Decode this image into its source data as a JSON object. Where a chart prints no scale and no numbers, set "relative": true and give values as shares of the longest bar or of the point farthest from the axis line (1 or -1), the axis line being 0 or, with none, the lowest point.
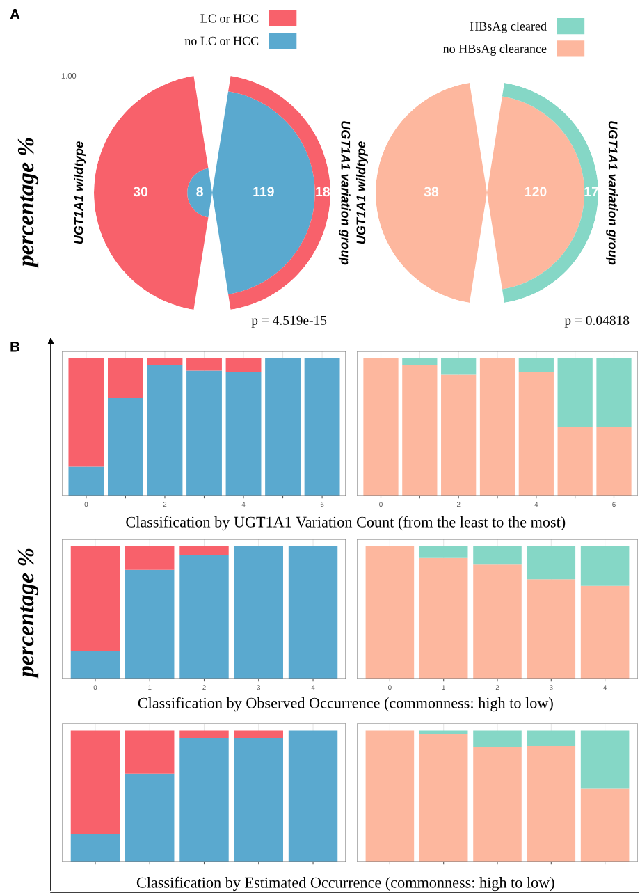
{
  "chart_data": [
    {
      "type": "other",
      "data_labels": true,
      "categories": [
        "UGT1A1 wildtype",
        "UGT1A1 variation group"
      ],
      "legend": "top",
      "annotations": [
        "A",
        "percentage %",
        "p = 4.519e-15",
        "1.00"
      ],
      "series": [
        {
          "name": "no LC or HCC",
          "color": "#5aa9cf",
          "values": [
            8,
            119
          ]
        },
        {
          "name": "LC or HCC",
          "color": "#f8616b",
          "values": [
            30,
            18
          ]
        }
      ]
    },
    {
      "type": "other",
      "data_labels": true,
      "categories": [
        "UGT1A1 wildtype",
        "UGT1A1 variation group"
      ],
      "legend": "top",
      "annotations": [
        "p = 0.04818"
      ],
      "series": [
        {
          "name": "no HBsAg clearance",
          "color": "#fdb79e",
          "values": [
            38,
            120
          ]
        },
        {
          "name": "HBsAg cleared",
          "color": "#85d7c6",
          "values": [
            null,
            17
          ]
        }
      ]
    },
    {
      "type": "bar",
      "stacked": true,
      "relative": true,
      "grid": "x",
      "tick_labels": "x",
      "categories": [
        "0",
        null,
        "2",
        null,
        "4",
        null,
        "6"
      ],
      "xlabel": "Classification by UGT1A1 Variation Count (from the least to the most)",
      "annotations": [
        "B",
        "percentage %"
      ],
      "series": [
        {
          "color": "#5aa9cf",
          "values": [
            0.21,
            0.71,
            0.95,
            0.91,
            0.9,
            1.0,
            1.0
          ]
        },
        {
          "color": "#f8616b",
          "values": [
            0.79,
            0.29,
            0.05,
            0.09,
            0.1,
            0,
            0
          ]
        }
      ]
    },
    {
      "type": "bar",
      "stacked": true,
      "relative": true,
      "grid": "x",
      "tick_labels": "x",
      "categories": [
        "0",
        null,
        "2",
        null,
        "4",
        null,
        "6"
      ],
      "series": [
        {
          "color": "#fdb79e",
          "values": [
            1.0,
            0.95,
            0.88,
            1.0,
            0.9,
            0.5,
            0.5
          ]
        },
        {
          "color": "#85d7c6",
          "values": [
            0,
            0.05,
            0.12,
            0,
            0.1,
            0.5,
            0.5
          ]
        }
      ]
    },
    {
      "type": "bar",
      "stacked": true,
      "relative": true,
      "grid": "x",
      "tick_labels": "x",
      "categories": [
        "0",
        "1",
        "2",
        "3",
        "4"
      ],
      "xlabel": "Classification by Observed Occurrence (commonness: high to low)",
      "series": [
        {
          "color": "#5aa9cf",
          "values": [
            0.21,
            0.82,
            0.93,
            1.0,
            1.0
          ]
        },
        {
          "color": "#f8616b",
          "values": [
            0.79,
            0.18,
            0.07,
            0,
            0
          ]
        }
      ]
    },
    {
      "type": "bar",
      "stacked": true,
      "relative": true,
      "grid": "x",
      "tick_labels": "x",
      "categories": [
        "0",
        "1",
        "2",
        "3",
        "4"
      ],
      "series": [
        {
          "color": "#fdb79e",
          "values": [
            1.0,
            0.91,
            0.86,
            0.75,
            0.7
          ]
        },
        {
          "color": "#85d7c6",
          "values": [
            0,
            0.09,
            0.14,
            0.25,
            0.3
          ]
        }
      ]
    },
    {
      "type": "bar",
      "stacked": true,
      "relative": true,
      "grid": "x",
      "tick_labels": false,
      "categories": [
        null,
        null,
        null,
        null,
        null
      ],
      "xlabel": "Classification by Estimated Occurrence (commonness: high to low)",
      "series": [
        {
          "color": "#5aa9cf",
          "values": [
            0.21,
            0.67,
            0.94,
            0.94,
            1.0
          ]
        },
        {
          "color": "#f8616b",
          "values": [
            0.79,
            0.33,
            0.06,
            0.06,
            0
          ]
        }
      ]
    },
    {
      "type": "bar",
      "stacked": true,
      "relative": true,
      "grid": "x",
      "tick_labels": false,
      "categories": [
        null,
        null,
        null,
        null,
        null
      ],
      "series": [
        {
          "color": "#fdb79e",
          "values": [
            1.0,
            0.97,
            0.87,
            0.88,
            0.56
          ]
        },
        {
          "color": "#85d7c6",
          "values": [
            0,
            0.03,
            0.13,
            0.12,
            0.44
          ]
        }
      ]
    }
  ]
}
